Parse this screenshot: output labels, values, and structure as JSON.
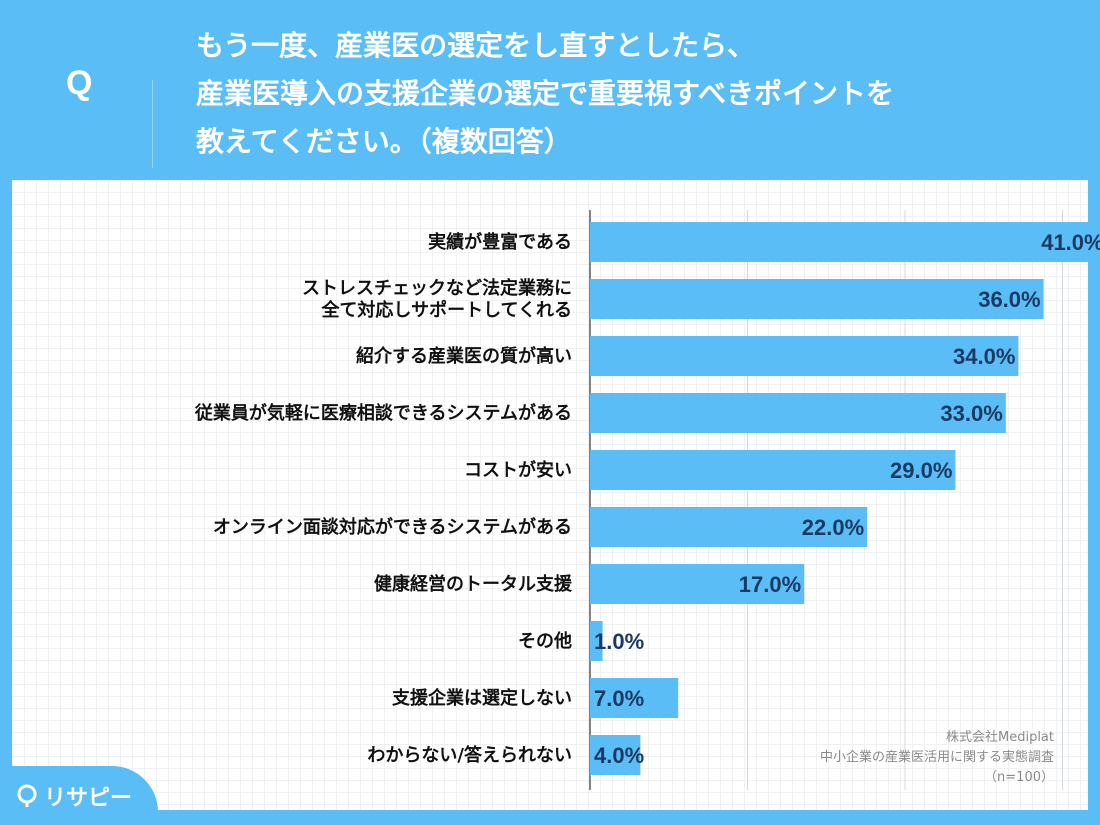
{
  "header": {
    "q_mark": "Q",
    "question_lines": [
      "もう一度、産業医の選定をし直すとしたら、",
      "産業医導入の支援企業の選定で重要視すべきポイントを",
      "教えてください。（複数回答）"
    ]
  },
  "chart_data": {
    "type": "bar",
    "orientation": "horizontal",
    "unit": "%",
    "categories": [
      "実績が豊富である",
      "ストレスチェックなど法定業務に\n全て対応しサポートしてくれる",
      "紹介する産業医の質が高い",
      "従業員が気軽に医療相談できるシステムがある",
      "コストが安い",
      "オンライン面談対応ができるシステムがある",
      "健康経営のトータル支援",
      "その他",
      "支援企業は選定しない",
      "わからない/答えられない"
    ],
    "values": [
      41.0,
      36.0,
      34.0,
      33.0,
      29.0,
      22.0,
      17.0,
      1.0,
      7.0,
      4.0
    ],
    "value_labels": [
      "41.0%",
      "36.0%",
      "34.0%",
      "33.0%",
      "29.0%",
      "22.0%",
      "17.0%",
      "1.0%",
      "7.0%",
      "4.0%"
    ],
    "xlim": [
      0,
      50
    ],
    "gridlines": [
      0,
      12.5,
      25,
      37.5,
      50
    ],
    "bar_color": "#5bbdf5",
    "label_color": "#1b3a63"
  },
  "source": {
    "lines": [
      "株式会社Mediplat",
      "中小企業の産業医活用に関する実態調査",
      "（n=100）"
    ]
  },
  "logo": {
    "text": "リサピー",
    "icon": "location-pin-icon"
  },
  "colors": {
    "background": "#5bbdf5",
    "panel": "#ffffff"
  }
}
